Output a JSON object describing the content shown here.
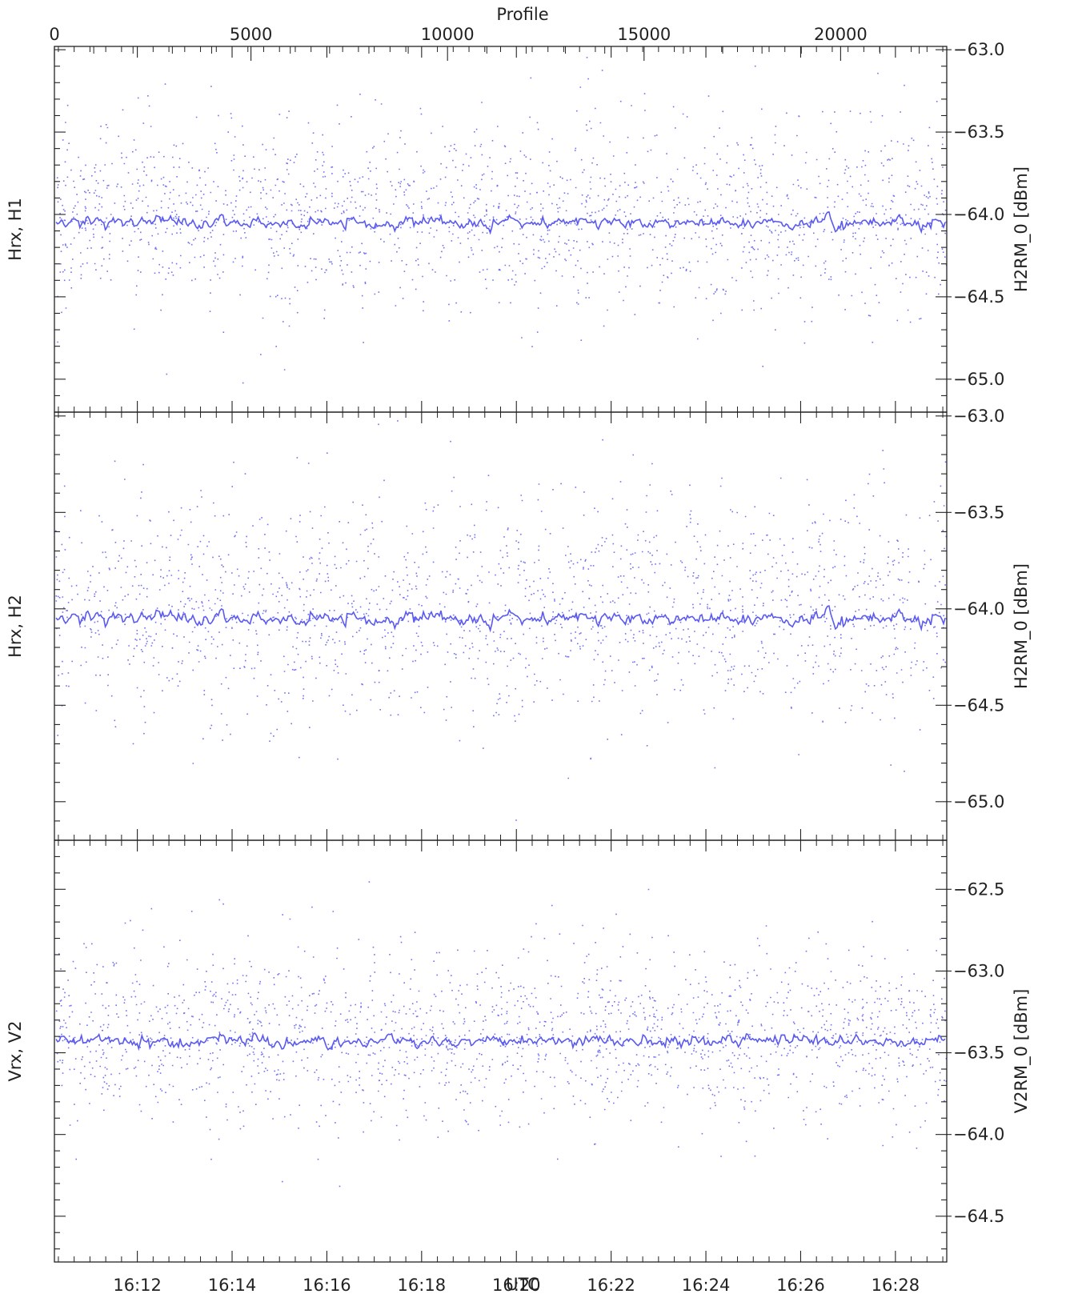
{
  "chart_data": {
    "type": "scatter",
    "top_axis": {
      "label": "Profile",
      "min": 0,
      "max": 22700,
      "ticks": [
        0,
        5000,
        10000,
        15000,
        20000
      ],
      "tick_labels": [
        "0",
        "5000",
        "10000",
        "15000",
        "20000"
      ]
    },
    "bottom_axis": {
      "label": "UTC",
      "start": "16:10:15",
      "end": "16:29:05",
      "ticks": [
        "16:12",
        "16:14",
        "16:16",
        "16:18",
        "16:20",
        "16:22",
        "16:24",
        "16:26",
        "16:28"
      ]
    },
    "panels": [
      {
        "left_label": "Hrx, H1",
        "right_label": "H2RM_0 [dBm]",
        "ylim": [
          -65.2,
          -62.98
        ],
        "ticks": [
          -63.0,
          -63.5,
          -64.0,
          -64.5,
          -65.0
        ],
        "tick_labels": [
          "-63.0",
          "-63.5",
          "-64.0",
          "-64.5",
          "-65.0"
        ],
        "series": [
          {
            "kind": "scatter",
            "mean": -64.0,
            "spread": 0.3
          },
          {
            "kind": "running-mean",
            "mean": -64.05
          }
        ]
      },
      {
        "left_label": "Hrx, H2",
        "right_label": "H2RM_0 [dBm]",
        "ylim": [
          -65.2,
          -62.98
        ],
        "ticks": [
          -63.0,
          -63.5,
          -64.0,
          -64.5,
          -65.0
        ],
        "tick_labels": [
          "-63.0",
          "-63.5",
          "-64.0",
          "-64.5",
          "-65.0"
        ],
        "series": [
          {
            "kind": "scatter",
            "mean": -64.0,
            "spread": 0.3
          },
          {
            "kind": "running-mean",
            "mean": -64.05
          }
        ]
      },
      {
        "left_label": "Vrx, V2",
        "right_label": "V2RM_0 [dBm]",
        "ylim": [
          -64.78,
          -62.2
        ],
        "ticks": [
          -62.5,
          -63.0,
          -63.5,
          -64.0,
          -64.5
        ],
        "tick_labels": [
          "-62.5",
          "-63.0",
          "-63.5",
          "-64.0",
          "-64.5"
        ],
        "series": [
          {
            "kind": "scatter",
            "mean": -63.4,
            "spread": 0.27
          },
          {
            "kind": "running-mean",
            "mean": -63.43
          }
        ]
      }
    ],
    "colors": {
      "data": "#5a5af0",
      "axes": "#222222"
    }
  }
}
